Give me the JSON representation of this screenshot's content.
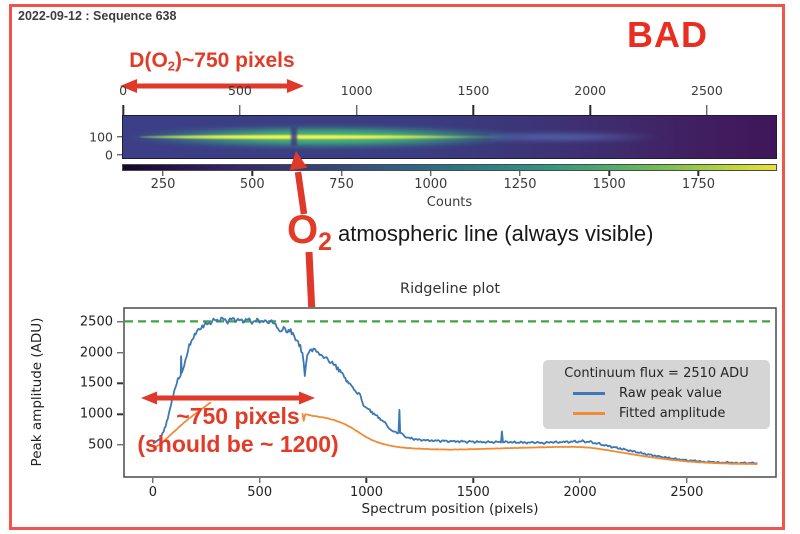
{
  "slide": {
    "date_label": "2022-09-12 : Sequence 638",
    "verdict_label": "BAD"
  },
  "colors": {
    "annotation_red": "#e23b28",
    "border_red": "#f0544a",
    "raw_peak_blue": "#3d78b3",
    "fitted_orange": "#f08a33",
    "continuum_green": "#3fa43f",
    "legend_background": "#d5d5d5"
  },
  "annotations": {
    "d_o2": {
      "prefix": "D(O",
      "sub": "2",
      "suffix": ")~750 pixels"
    },
    "o2": {
      "main": "O",
      "sub": "2"
    },
    "o2_description": "atmospheric line (always visible)",
    "width_measured": "~750 pixels",
    "width_expected": "(should be ~ 1200)"
  },
  "chart_data": [
    {
      "type": "heatmap",
      "description": "2D spectrogram with bright horizontal emission trace and O2 absorption gap",
      "top_axis": {
        "unit": "pixels",
        "ticks": [
          0,
          500,
          1000,
          1500,
          2000,
          2500
        ],
        "range": [
          -5,
          2800
        ]
      },
      "y_axis": {
        "ticks": [
          100,
          0
        ],
        "range": [
          -22,
          222
        ]
      },
      "colorbar_axis": {
        "label": "Counts",
        "ticks": [
          250,
          500,
          750,
          1000,
          1250,
          1500,
          1750
        ],
        "range": [
          135,
          1970
        ]
      },
      "features": {
        "bright_line_row": 100,
        "o2_absorption_gap_at_pixel": 727
      }
    },
    {
      "type": "line",
      "title": "Ridgeline plot",
      "xlabel": "Spectrum position (pixels)",
      "ylabel": "Peak amplitude (ADU)",
      "xlim": [
        -140,
        2922
      ],
      "ylim": [
        -37,
        2744
      ],
      "x_ticks": [
        0,
        500,
        1000,
        1500,
        2000,
        2500
      ],
      "y_ticks": [
        500,
        1000,
        1500,
        2000,
        2500
      ],
      "continuum_line": {
        "value": 2510,
        "style": "dashed",
        "color": "#3fa43f"
      },
      "legend": {
        "title": "Continuum flux = 2510 ADU",
        "entries": [
          {
            "label": "Raw peak value",
            "color": "#3d78b3"
          },
          {
            "label": "Fitted amplitude",
            "color": "#f08a33"
          }
        ]
      },
      "series": [
        {
          "name": "Raw peak value",
          "color": "#3d78b3",
          "noise": 40,
          "segments": [
            [
              [
                0,
                520
              ],
              [
                20,
                558
              ],
              [
                40,
                640
              ],
              [
                55,
                760
              ],
              [
                70,
                950
              ],
              [
                85,
                1150
              ],
              [
                100,
                1380
              ],
              [
                112,
                1530
              ],
              [
                122,
                1595
              ],
              [
                130,
                1630
              ],
              [
                132,
                1950
              ],
              [
                135,
                1660
              ],
              [
                146,
                1800
              ],
              [
                158,
                1955
              ],
              [
                170,
                2100
              ],
              [
                185,
                2230
              ],
              [
                200,
                2320
              ],
              [
                220,
                2400
              ],
              [
                242,
                2450
              ],
              [
                265,
                2490
              ],
              [
                290,
                2520
              ],
              [
                320,
                2545
              ],
              [
                350,
                2520
              ],
              [
                380,
                2552
              ],
              [
                410,
                2515
              ],
              [
                440,
                2538
              ],
              [
                470,
                2505
              ],
              [
                500,
                2528
              ],
              [
                530,
                2492
              ],
              [
                556,
                2520
              ],
              [
                575,
                2452
              ],
              [
                590,
                2380
              ],
              [
                600,
                2330
              ],
              [
                612,
                2392
              ],
              [
                625,
                2345
              ],
              [
                640,
                2365
              ],
              [
                655,
                2295
              ],
              [
                668,
                2232
              ],
              [
                680,
                2155
              ],
              [
                690,
                2085
              ],
              [
                700,
                1985
              ],
              [
                706,
                1830
              ],
              [
                711,
                1655
              ],
              [
                717,
                1790
              ],
              [
                723,
                1935
              ],
              [
                731,
                2012
              ],
              [
                741,
                2062
              ],
              [
                752,
                2048
              ],
              [
                766,
                2012
              ],
              [
                781,
                1978
              ],
              [
                800,
                1932
              ],
              [
                820,
                1882
              ],
              [
                840,
                1822
              ],
              [
                856,
                1782
              ],
              [
                871,
                1728
              ],
              [
                886,
                1662
              ],
              [
                901,
                1582
              ],
              [
                916,
                1512
              ],
              [
                931,
                1452
              ],
              [
                946,
                1392
              ],
              [
                958,
                1342
              ],
              [
                970,
                1302
              ],
              [
                978,
                1232
              ],
              [
                986,
                1152
              ],
              [
                996,
                1112
              ],
              [
                1010,
                1078
              ],
              [
                1025,
                1038
              ],
              [
                1040,
                992
              ],
              [
                1056,
                948
              ],
              [
                1071,
                908
              ],
              [
                1086,
                862
              ],
              [
                1100,
                802
              ],
              [
                1112,
                752
              ],
              [
                1126,
                718
              ],
              [
                1150,
                702
              ],
              [
                1154,
                1088
              ],
              [
                1158,
                692
              ],
              [
                1172,
                658
              ],
              [
                1186,
                632
              ],
              [
                1200,
                612
              ],
              [
                1222,
                596
              ],
              [
                1252,
                582
              ],
              [
                1300,
                572
              ],
              [
                1352,
                566
              ],
              [
                1400,
                560
              ],
              [
                1452,
                556
              ],
              [
                1500,
                552
              ],
              [
                1552,
                548
              ],
              [
                1600,
                546
              ],
              [
                1630,
                550
              ],
              [
                1634,
                716
              ],
              [
                1639,
                548
              ],
              [
                1682,
                544
              ],
              [
                1722,
                541
              ],
              [
                1762,
                538
              ],
              [
                1800,
                536
              ],
              [
                1850,
                539
              ],
              [
                1900,
                546
              ],
              [
                1940,
                551
              ],
              [
                1982,
                556
              ],
              [
                2012,
                559
              ],
              [
                2042,
                551
              ],
              [
                2072,
                531
              ],
              [
                2102,
                506
              ],
              [
                2142,
                476
              ],
              [
                2182,
                446
              ],
              [
                2222,
                416
              ],
              [
                2262,
                386
              ],
              [
                2302,
                356
              ],
              [
                2342,
                331
              ],
              [
                2382,
                306
              ],
              [
                2422,
                286
              ],
              [
                2462,
                266
              ],
              [
                2502,
                251
              ],
              [
                2552,
                236
              ],
              [
                2602,
                223
              ],
              [
                2652,
                216
              ],
              [
                2702,
                211
              ],
              [
                2752,
                207
              ],
              [
                2830,
                205
              ]
            ]
          ]
        },
        {
          "name": "Fitted amplitude",
          "color": "#f08a33",
          "noise": 6,
          "segments": [
            [
              [
                0,
                440
              ],
              [
                25,
                496
              ],
              [
                50,
                560
              ],
              [
                75,
                640
              ],
              [
                100,
                720
              ],
              [
                125,
                800
              ],
              [
                150,
                876
              ],
              [
                175,
                946
              ],
              [
                200,
                1012
              ],
              [
                225,
                1072
              ],
              [
                245,
                1126
              ],
              [
                260,
                1166
              ],
              [
                272,
                1192
              ]
            ],
            [
              [
                700,
                1015
              ],
              [
                706,
                895
              ],
              [
                713,
                1000
              ],
              [
                726,
                990
              ],
              [
                741,
                980
              ],
              [
                761,
                968
              ],
              [
                781,
                956
              ],
              [
                801,
                945
              ],
              [
                821,
                930
              ],
              [
                841,
                912
              ],
              [
                861,
                890
              ],
              [
                881,
                865
              ],
              [
                901,
                835
              ],
              [
                921,
                796
              ],
              [
                941,
                756
              ],
              [
                961,
                711
              ],
              [
                981,
                666
              ],
              [
                1001,
                626
              ],
              [
                1021,
                589
              ],
              [
                1041,
                559
              ],
              [
                1061,
                533
              ],
              [
                1081,
                513
              ],
              [
                1101,
                496
              ],
              [
                1131,
                476
              ],
              [
                1161,
                461
              ],
              [
                1201,
                449
              ],
              [
                1251,
                439
              ],
              [
                1301,
                431
              ],
              [
                1351,
                427
              ],
              [
                1401,
                425
              ],
              [
                1451,
                428
              ],
              [
                1501,
                432
              ],
              [
                1551,
                437
              ],
              [
                1601,
                442
              ],
              [
                1651,
                447
              ],
              [
                1701,
                452
              ],
              [
                1751,
                457
              ],
              [
                1801,
                461
              ],
              [
                1851,
                465
              ],
              [
                1901,
                468
              ],
              [
                1951,
                470
              ],
              [
                2001,
                466
              ],
              [
                2041,
                458
              ],
              [
                2071,
                446
              ],
              [
                2101,
                430
              ],
              [
                2141,
                408
              ],
              [
                2181,
                385
              ],
              [
                2221,
                362
              ],
              [
                2261,
                339
              ],
              [
                2301,
                317
              ],
              [
                2341,
                297
              ],
              [
                2381,
                278
              ],
              [
                2421,
                261
              ],
              [
                2461,
                246
              ],
              [
                2501,
                232
              ],
              [
                2551,
                220
              ],
              [
                2601,
                210
              ],
              [
                2651,
                203
              ],
              [
                2701,
                197
              ],
              [
                2751,
                193
              ],
              [
                2830,
                190
              ]
            ]
          ]
        }
      ]
    }
  ]
}
